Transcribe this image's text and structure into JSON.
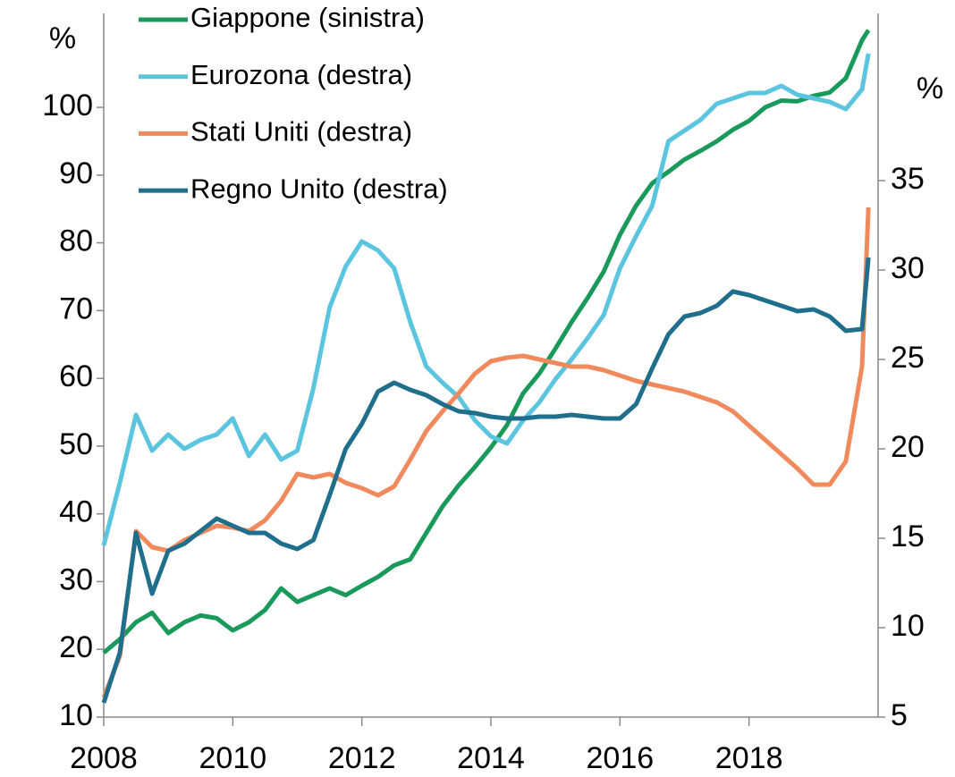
{
  "chart_data": {
    "type": "line",
    "y_label": "%",
    "y2_label": "%",
    "x": [
      2008,
      2008.25,
      2008.5,
      2008.75,
      2009,
      2009.25,
      2009.5,
      2009.75,
      2010,
      2010.25,
      2010.5,
      2010.75,
      2011,
      2011.25,
      2011.5,
      2011.75,
      2012,
      2012.25,
      2012.5,
      2012.75,
      2013,
      2013.25,
      2013.5,
      2013.75,
      2014,
      2014.25,
      2014.5,
      2014.75,
      2015,
      2015.25,
      2015.5,
      2015.75,
      2016,
      2016.25,
      2016.5,
      2016.75,
      2017,
      2017.25,
      2017.5,
      2017.75,
      2018,
      2018.25,
      2018.5,
      2018.75,
      2019,
      2019.25,
      2019.5,
      2019.75,
      2019.85
    ],
    "series": [
      {
        "name": "Giappone (sinistra)",
        "color": "#1a9a5a",
        "axis": "y",
        "values": [
          19.5,
          21.5,
          24,
          25.4,
          22.4,
          24,
          25,
          24.6,
          22.8,
          24,
          25.8,
          29,
          27,
          28,
          29,
          28,
          29.4,
          30.7,
          32.4,
          33.3,
          37.2,
          41.1,
          44.2,
          46.9,
          49.8,
          53.1,
          57.8,
          60.7,
          64.4,
          68.3,
          71.9,
          75.8,
          81.2,
          85.5,
          88.8,
          90.5,
          92.3,
          93.6,
          95,
          96.7,
          98,
          100,
          101,
          100.9,
          101.7,
          102.2,
          104.3,
          109.9,
          111.4
        ]
      },
      {
        "name": "Eurozona (destra)",
        "color": "#5bc4de",
        "axis": "y2",
        "values": [
          14.6,
          18.1,
          21.9,
          19.9,
          20.8,
          20,
          20.5,
          20.8,
          21.7,
          19.6,
          20.8,
          19.4,
          19.9,
          23.4,
          27.9,
          30.2,
          31.6,
          31.1,
          30.1,
          27.1,
          24.6,
          23.7,
          22.9,
          21.6,
          20.7,
          20.3,
          21.6,
          22.6,
          23.9,
          25,
          26.2,
          27.5,
          30.1,
          31.9,
          33.6,
          37.2,
          37.8,
          38.4,
          39.3,
          39.6,
          39.9,
          39.9,
          40.3,
          39.8,
          39.6,
          39.4,
          39,
          40.1,
          42.1
        ]
      },
      {
        "name": "Stati Uniti (destra)",
        "color": "#f08a5d",
        "axis": "y2",
        "values": [
          6.1,
          8.4,
          15.4,
          14.5,
          14.3,
          14.9,
          15.3,
          15.7,
          15.6,
          15.4,
          16,
          17.1,
          18.6,
          18.4,
          18.6,
          18.1,
          17.8,
          17.4,
          17.9,
          19.4,
          21,
          22.1,
          23.1,
          24.2,
          24.9,
          25.1,
          25.2,
          25,
          24.8,
          24.6,
          24.6,
          24.4,
          24.1,
          23.8,
          23.6,
          23.4,
          23.2,
          22.9,
          22.6,
          22.1,
          21.3,
          20.5,
          19.7,
          18.9,
          18,
          18,
          19.3,
          24.6,
          33.5
        ]
      },
      {
        "name": "Regno Unito (destra)",
        "color": "#1f6e8c",
        "axis": "y2",
        "values": [
          5.8,
          8.6,
          15.3,
          11.9,
          14.3,
          14.7,
          15.4,
          16.1,
          15.7,
          15.3,
          15.3,
          14.7,
          14.4,
          14.9,
          17.4,
          20,
          21.4,
          23.2,
          23.7,
          23.3,
          23,
          22.5,
          22.1,
          22,
          21.8,
          21.7,
          21.7,
          21.8,
          21.8,
          21.9,
          21.8,
          21.7,
          21.7,
          22.5,
          24.5,
          26.4,
          27.4,
          27.6,
          28,
          28.8,
          28.6,
          28.3,
          28,
          27.7,
          27.8,
          27.4,
          26.6,
          26.7,
          30.7
        ]
      }
    ],
    "xlim": [
      2008,
      2020
    ],
    "xticks": [
      2008,
      2010,
      2012,
      2014,
      2016,
      2018
    ],
    "ylim": [
      10,
      114
    ],
    "yticks": [
      10,
      20,
      30,
      40,
      50,
      60,
      70,
      80,
      90,
      100
    ],
    "y2lim": [
      5,
      44.4
    ],
    "y2ticks": [
      5,
      10,
      15,
      20,
      25,
      30,
      35
    ],
    "legend": "top-left"
  }
}
